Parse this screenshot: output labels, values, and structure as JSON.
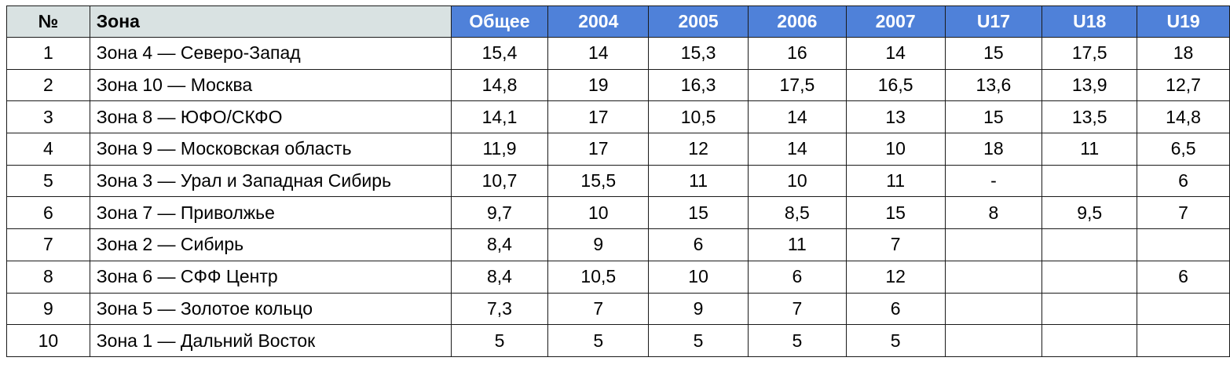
{
  "table": {
    "headers": {
      "num": "№",
      "zone": "Зона",
      "total": "Общее",
      "y2004": "2004",
      "y2005": "2005",
      "y2006": "2006",
      "y2007": "2007",
      "u17": "U17",
      "u18": "U18",
      "u19": "U19"
    },
    "rows": [
      {
        "num": "1",
        "zone": "Зона 4 — Северо-Запад",
        "values": [
          "15,4",
          "14",
          "15,3",
          "16",
          "14",
          "15",
          "17,5",
          "18"
        ]
      },
      {
        "num": "2",
        "zone": "Зона 10 — Москва",
        "values": [
          "14,8",
          "19",
          "16,3",
          "17,5",
          "16,5",
          "13,6",
          "13,9",
          "12,7"
        ]
      },
      {
        "num": "3",
        "zone": "Зона 8 — ЮФО/СКФО",
        "values": [
          "14,1",
          "17",
          "10,5",
          "14",
          "13",
          "15",
          "13,5",
          "14,8"
        ]
      },
      {
        "num": "4",
        "zone": "Зона 9 — Московская область",
        "values": [
          "11,9",
          "17",
          "12",
          "14",
          "10",
          "18",
          "11",
          "6,5"
        ]
      },
      {
        "num": "5",
        "zone": "Зона 3 — Урал и Западная Сибирь",
        "values": [
          "10,7",
          "15,5",
          "11",
          "10",
          "11",
          "-",
          "",
          "6"
        ]
      },
      {
        "num": "6",
        "zone": "Зона 7 — Приволжье",
        "values": [
          "9,7",
          "10",
          "15",
          "8,5",
          "15",
          "8",
          "9,5",
          "7"
        ]
      },
      {
        "num": "7",
        "zone": "Зона 2 — Сибирь",
        "values": [
          "8,4",
          "9",
          "6",
          "11",
          "7",
          "",
          "",
          ""
        ]
      },
      {
        "num": "8",
        "zone": "Зона 6 — СФФ Центр",
        "values": [
          "8,4",
          "10,5",
          "10",
          "6",
          "12",
          "",
          "",
          "6"
        ]
      },
      {
        "num": "9",
        "zone": "Зона 5 — Золотое кольцо",
        "values": [
          "7,3",
          "7",
          "9",
          "7",
          "6",
          "",
          "",
          ""
        ]
      },
      {
        "num": "10",
        "zone": "Зона 1 — Дальний Восток",
        "values": [
          "5",
          "5",
          "5",
          "5",
          "5",
          "",
          "",
          ""
        ]
      }
    ]
  },
  "colors": {
    "header_gray": "#d9e2e2",
    "header_blue": "#4f81d9",
    "header_blue_text": "#ffffff",
    "border": "#1a1a1a"
  }
}
